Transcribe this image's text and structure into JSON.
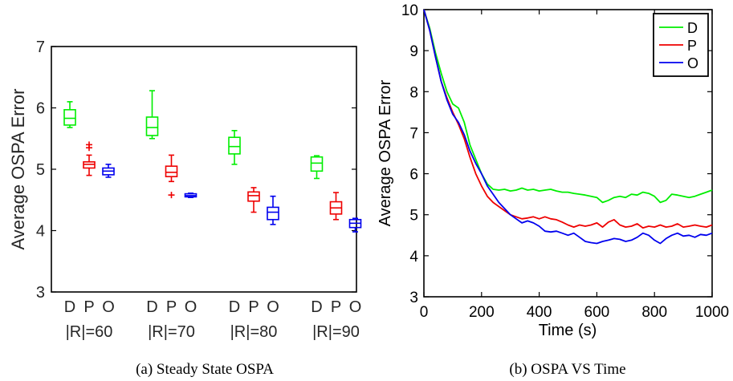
{
  "chart_data": [
    {
      "type": "box",
      "caption": "(a) Steady State OSPA",
      "ylabel": "Average OSPA Error",
      "ylim": [
        3,
        7
      ],
      "yticks": [
        3,
        4,
        5,
        6,
        7
      ],
      "grid": false,
      "groups": [
        "|R|=60",
        "|R|=70",
        "|R|=80",
        "|R|=90"
      ],
      "box_labels": [
        "D",
        "P",
        "O"
      ],
      "colors": {
        "D": "#00ee00",
        "P": "#ee0000",
        "O": "#0000ee"
      },
      "boxes": [
        {
          "group": "|R|=60",
          "label": "D",
          "whisker_low": 5.68,
          "q1": 5.72,
          "median": 5.83,
          "q3": 5.97,
          "whisker_high": 6.1,
          "outliers": []
        },
        {
          "group": "|R|=60",
          "label": "P",
          "whisker_low": 4.9,
          "q1": 5.02,
          "median": 5.08,
          "q3": 5.12,
          "whisker_high": 5.23,
          "outliers": [
            5.35,
            5.4
          ]
        },
        {
          "group": "|R|=60",
          "label": "O",
          "whisker_low": 4.87,
          "q1": 4.91,
          "median": 4.97,
          "q3": 5.02,
          "whisker_high": 5.08,
          "outliers": []
        },
        {
          "group": "|R|=70",
          "label": "D",
          "whisker_low": 5.5,
          "q1": 5.55,
          "median": 5.68,
          "q3": 5.85,
          "whisker_high": 6.28,
          "outliers": []
        },
        {
          "group": "|R|=70",
          "label": "P",
          "whisker_low": 4.8,
          "q1": 4.88,
          "median": 4.95,
          "q3": 5.05,
          "whisker_high": 5.23,
          "outliers": [
            4.58
          ]
        },
        {
          "group": "|R|=70",
          "label": "O",
          "whisker_low": 4.54,
          "q1": 4.55,
          "median": 4.57,
          "q3": 4.6,
          "whisker_high": 4.61,
          "outliers": []
        },
        {
          "group": "|R|=80",
          "label": "D",
          "whisker_low": 5.08,
          "q1": 5.25,
          "median": 5.37,
          "q3": 5.52,
          "whisker_high": 5.63,
          "outliers": []
        },
        {
          "group": "|R|=80",
          "label": "P",
          "whisker_low": 4.3,
          "q1": 4.48,
          "median": 4.57,
          "q3": 4.63,
          "whisker_high": 4.7,
          "outliers": []
        },
        {
          "group": "|R|=80",
          "label": "O",
          "whisker_low": 4.1,
          "q1": 4.18,
          "median": 4.3,
          "q3": 4.38,
          "whisker_high": 4.56,
          "outliers": []
        },
        {
          "group": "|R|=90",
          "label": "D",
          "whisker_low": 4.85,
          "q1": 4.97,
          "median": 5.1,
          "q3": 5.2,
          "whisker_high": 5.22,
          "outliers": []
        },
        {
          "group": "|R|=90",
          "label": "P",
          "whisker_low": 4.18,
          "q1": 4.27,
          "median": 4.37,
          "q3": 4.47,
          "whisker_high": 4.62,
          "outliers": []
        },
        {
          "group": "|R|=90",
          "label": "O",
          "whisker_low": 3.98,
          "q1": 4.05,
          "median": 4.12,
          "q3": 4.18,
          "whisker_high": 4.2,
          "outliers": []
        }
      ]
    },
    {
      "type": "line",
      "caption": "(b) OSPA VS Time",
      "xlabel": "Time (s)",
      "ylabel": "Average OSPA Error",
      "xlim": [
        0,
        1000
      ],
      "ylim": [
        3,
        10
      ],
      "xticks": [
        0,
        200,
        400,
        600,
        800,
        1000
      ],
      "yticks": [
        3,
        4,
        5,
        6,
        7,
        8,
        9,
        10
      ],
      "grid": false,
      "legend_position": "top-right",
      "x": [
        0,
        20,
        40,
        60,
        80,
        100,
        120,
        140,
        160,
        180,
        200,
        220,
        240,
        260,
        280,
        300,
        320,
        340,
        360,
        380,
        400,
        420,
        440,
        460,
        480,
        500,
        520,
        540,
        560,
        580,
        600,
        620,
        640,
        660,
        680,
        700,
        720,
        740,
        760,
        780,
        800,
        820,
        840,
        860,
        880,
        900,
        920,
        940,
        960,
        980,
        1000
      ],
      "series": [
        {
          "name": "D",
          "color": "#00ee00",
          "values": [
            10.0,
            9.55,
            8.95,
            8.45,
            8.0,
            7.7,
            7.6,
            7.25,
            6.7,
            6.35,
            6.0,
            5.75,
            5.62,
            5.6,
            5.62,
            5.58,
            5.6,
            5.65,
            5.6,
            5.62,
            5.58,
            5.6,
            5.62,
            5.58,
            5.55,
            5.55,
            5.52,
            5.5,
            5.48,
            5.45,
            5.42,
            5.3,
            5.35,
            5.42,
            5.45,
            5.42,
            5.5,
            5.48,
            5.55,
            5.52,
            5.45,
            5.3,
            5.35,
            5.5,
            5.48,
            5.45,
            5.42,
            5.45,
            5.5,
            5.55,
            5.6
          ]
        },
        {
          "name": "P",
          "color": "#ee0000",
          "values": [
            10.0,
            9.5,
            8.85,
            8.25,
            7.85,
            7.5,
            7.2,
            6.85,
            6.4,
            6.0,
            5.7,
            5.45,
            5.3,
            5.2,
            5.1,
            5.0,
            4.95,
            4.9,
            4.92,
            4.95,
            4.9,
            4.95,
            4.9,
            4.88,
            4.82,
            4.75,
            4.7,
            4.75,
            4.72,
            4.75,
            4.8,
            4.7,
            4.82,
            4.88,
            4.75,
            4.7,
            4.72,
            4.78,
            4.68,
            4.72,
            4.7,
            4.75,
            4.7,
            4.72,
            4.78,
            4.7,
            4.72,
            4.75,
            4.72,
            4.7,
            4.75
          ]
        },
        {
          "name": "O",
          "color": "#0000ee",
          "values": [
            10.0,
            9.5,
            8.85,
            8.25,
            7.8,
            7.45,
            7.25,
            6.95,
            6.55,
            6.25,
            6.0,
            5.7,
            5.5,
            5.3,
            5.15,
            5.0,
            4.9,
            4.8,
            4.85,
            4.8,
            4.72,
            4.6,
            4.58,
            4.6,
            4.55,
            4.5,
            4.55,
            4.45,
            4.35,
            4.32,
            4.3,
            4.35,
            4.38,
            4.42,
            4.4,
            4.35,
            4.38,
            4.45,
            4.55,
            4.5,
            4.38,
            4.3,
            4.42,
            4.5,
            4.55,
            4.48,
            4.5,
            4.45,
            4.52,
            4.5,
            4.55
          ]
        }
      ]
    }
  ]
}
